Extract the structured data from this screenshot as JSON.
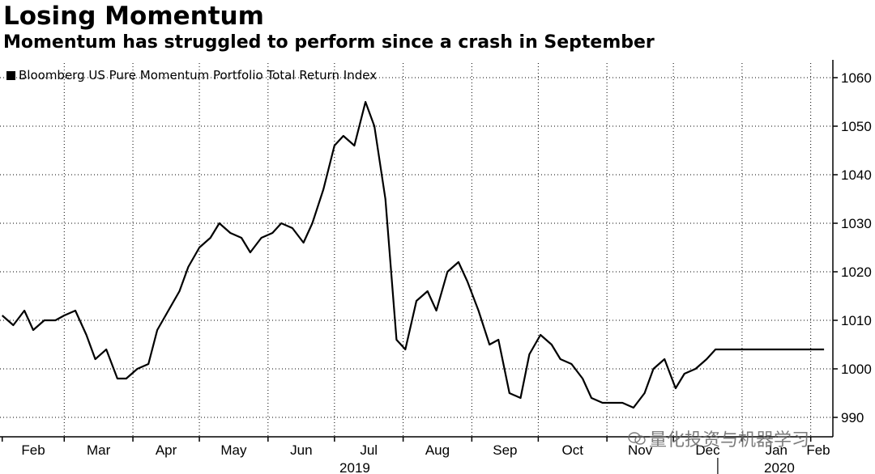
{
  "chart_data": {
    "type": "line",
    "title": "Losing Momentum",
    "subtitle": "Momentum has struggled to perform since a crash in September",
    "series": [
      {
        "name": "Bloomberg US Pure Momentum Portfolio Total Return Index",
        "color": "#000000",
        "x": [
          "2019-02-01",
          "2019-02-06",
          "2019-02-11",
          "2019-02-15",
          "2019-02-20",
          "2019-02-25",
          "2019-03-01",
          "2019-03-06",
          "2019-03-11",
          "2019-03-15",
          "2019-03-20",
          "2019-03-25",
          "2019-03-29",
          "2019-04-03",
          "2019-04-08",
          "2019-04-12",
          "2019-04-17",
          "2019-04-22",
          "2019-04-26",
          "2019-05-01",
          "2019-05-06",
          "2019-05-10",
          "2019-05-15",
          "2019-05-20",
          "2019-05-24",
          "2019-05-29",
          "2019-06-03",
          "2019-06-07",
          "2019-06-12",
          "2019-06-17",
          "2019-06-21",
          "2019-06-26",
          "2019-07-01",
          "2019-07-05",
          "2019-07-10",
          "2019-07-15",
          "2019-07-19",
          "2019-07-24",
          "2019-07-29",
          "2019-08-02",
          "2019-08-07",
          "2019-08-12",
          "2019-08-16",
          "2019-08-21",
          "2019-08-26",
          "2019-08-30",
          "2019-09-04",
          "2019-09-09",
          "2019-09-13",
          "2019-09-18",
          "2019-09-23",
          "2019-09-27",
          "2019-10-02",
          "2019-10-07",
          "2019-10-11",
          "2019-10-16",
          "2019-10-21",
          "2019-10-25",
          "2019-10-30",
          "2019-11-04",
          "2019-11-08",
          "2019-11-13",
          "2019-11-18",
          "2019-11-22",
          "2019-11-27",
          "2019-12-02",
          "2019-12-06",
          "2019-12-11",
          "2019-12-16",
          "2019-12-20",
          "2019-12-26",
          "2019-12-31",
          "2020-01-06",
          "2020-01-10",
          "2020-01-15",
          "2020-01-21",
          "2020-01-24",
          "2020-01-29",
          "2020-02-03",
          "2020-02-07"
        ],
        "values": [
          1011,
          1009,
          1012,
          1008,
          1010,
          1010,
          1011,
          1012,
          1007,
          1002,
          1004,
          998,
          998,
          1000,
          1001,
          1008,
          1012,
          1016,
          1021,
          1025,
          1027,
          1030,
          1028,
          1027,
          1024,
          1027,
          1028,
          1030,
          1029,
          1026,
          1030,
          1037,
          1046,
          1048,
          1046,
          1055,
          1050,
          1035,
          1006,
          1004,
          1014,
          1016,
          1012,
          1020,
          1022,
          1018,
          1012,
          1005,
          1006,
          995,
          994,
          1003,
          1007,
          1005,
          1002,
          1001,
          998,
          994,
          993,
          993,
          993,
          992,
          995,
          1000,
          1002,
          996,
          999,
          1000,
          1002,
          1004,
          1004,
          1004,
          1004,
          1004,
          1004,
          1004,
          1004,
          1004,
          1004,
          1004
        ]
      }
    ],
    "x_tick_labels": [
      "Feb",
      "Mar",
      "Apr",
      "May",
      "Jun",
      "Jul",
      "Aug",
      "Sep",
      "Oct",
      "Nov",
      "Dec",
      "Jan",
      "Feb"
    ],
    "x_tick_dates": [
      "2019-02-01",
      "2019-03-01",
      "2019-04-01",
      "2019-05-01",
      "2019-06-01",
      "2019-07-01",
      "2019-08-01",
      "2019-09-01",
      "2019-10-01",
      "2019-11-01",
      "2019-12-01",
      "2020-01-01",
      "2020-02-01"
    ],
    "year_labels": [
      "2019",
      "2020"
    ],
    "y_ticks": [
      990,
      1000,
      1010,
      1020,
      1030,
      1040,
      1050,
      1060
    ],
    "ylim": [
      986,
      1063
    ],
    "xlim": [
      "2019-01-31",
      "2020-02-11"
    ],
    "grid": true,
    "y_axis_side": "right",
    "legend_position": "top-left"
  },
  "watermark": {
    "text": "量化投资与机器学习",
    "icon": "wechat-icon"
  }
}
